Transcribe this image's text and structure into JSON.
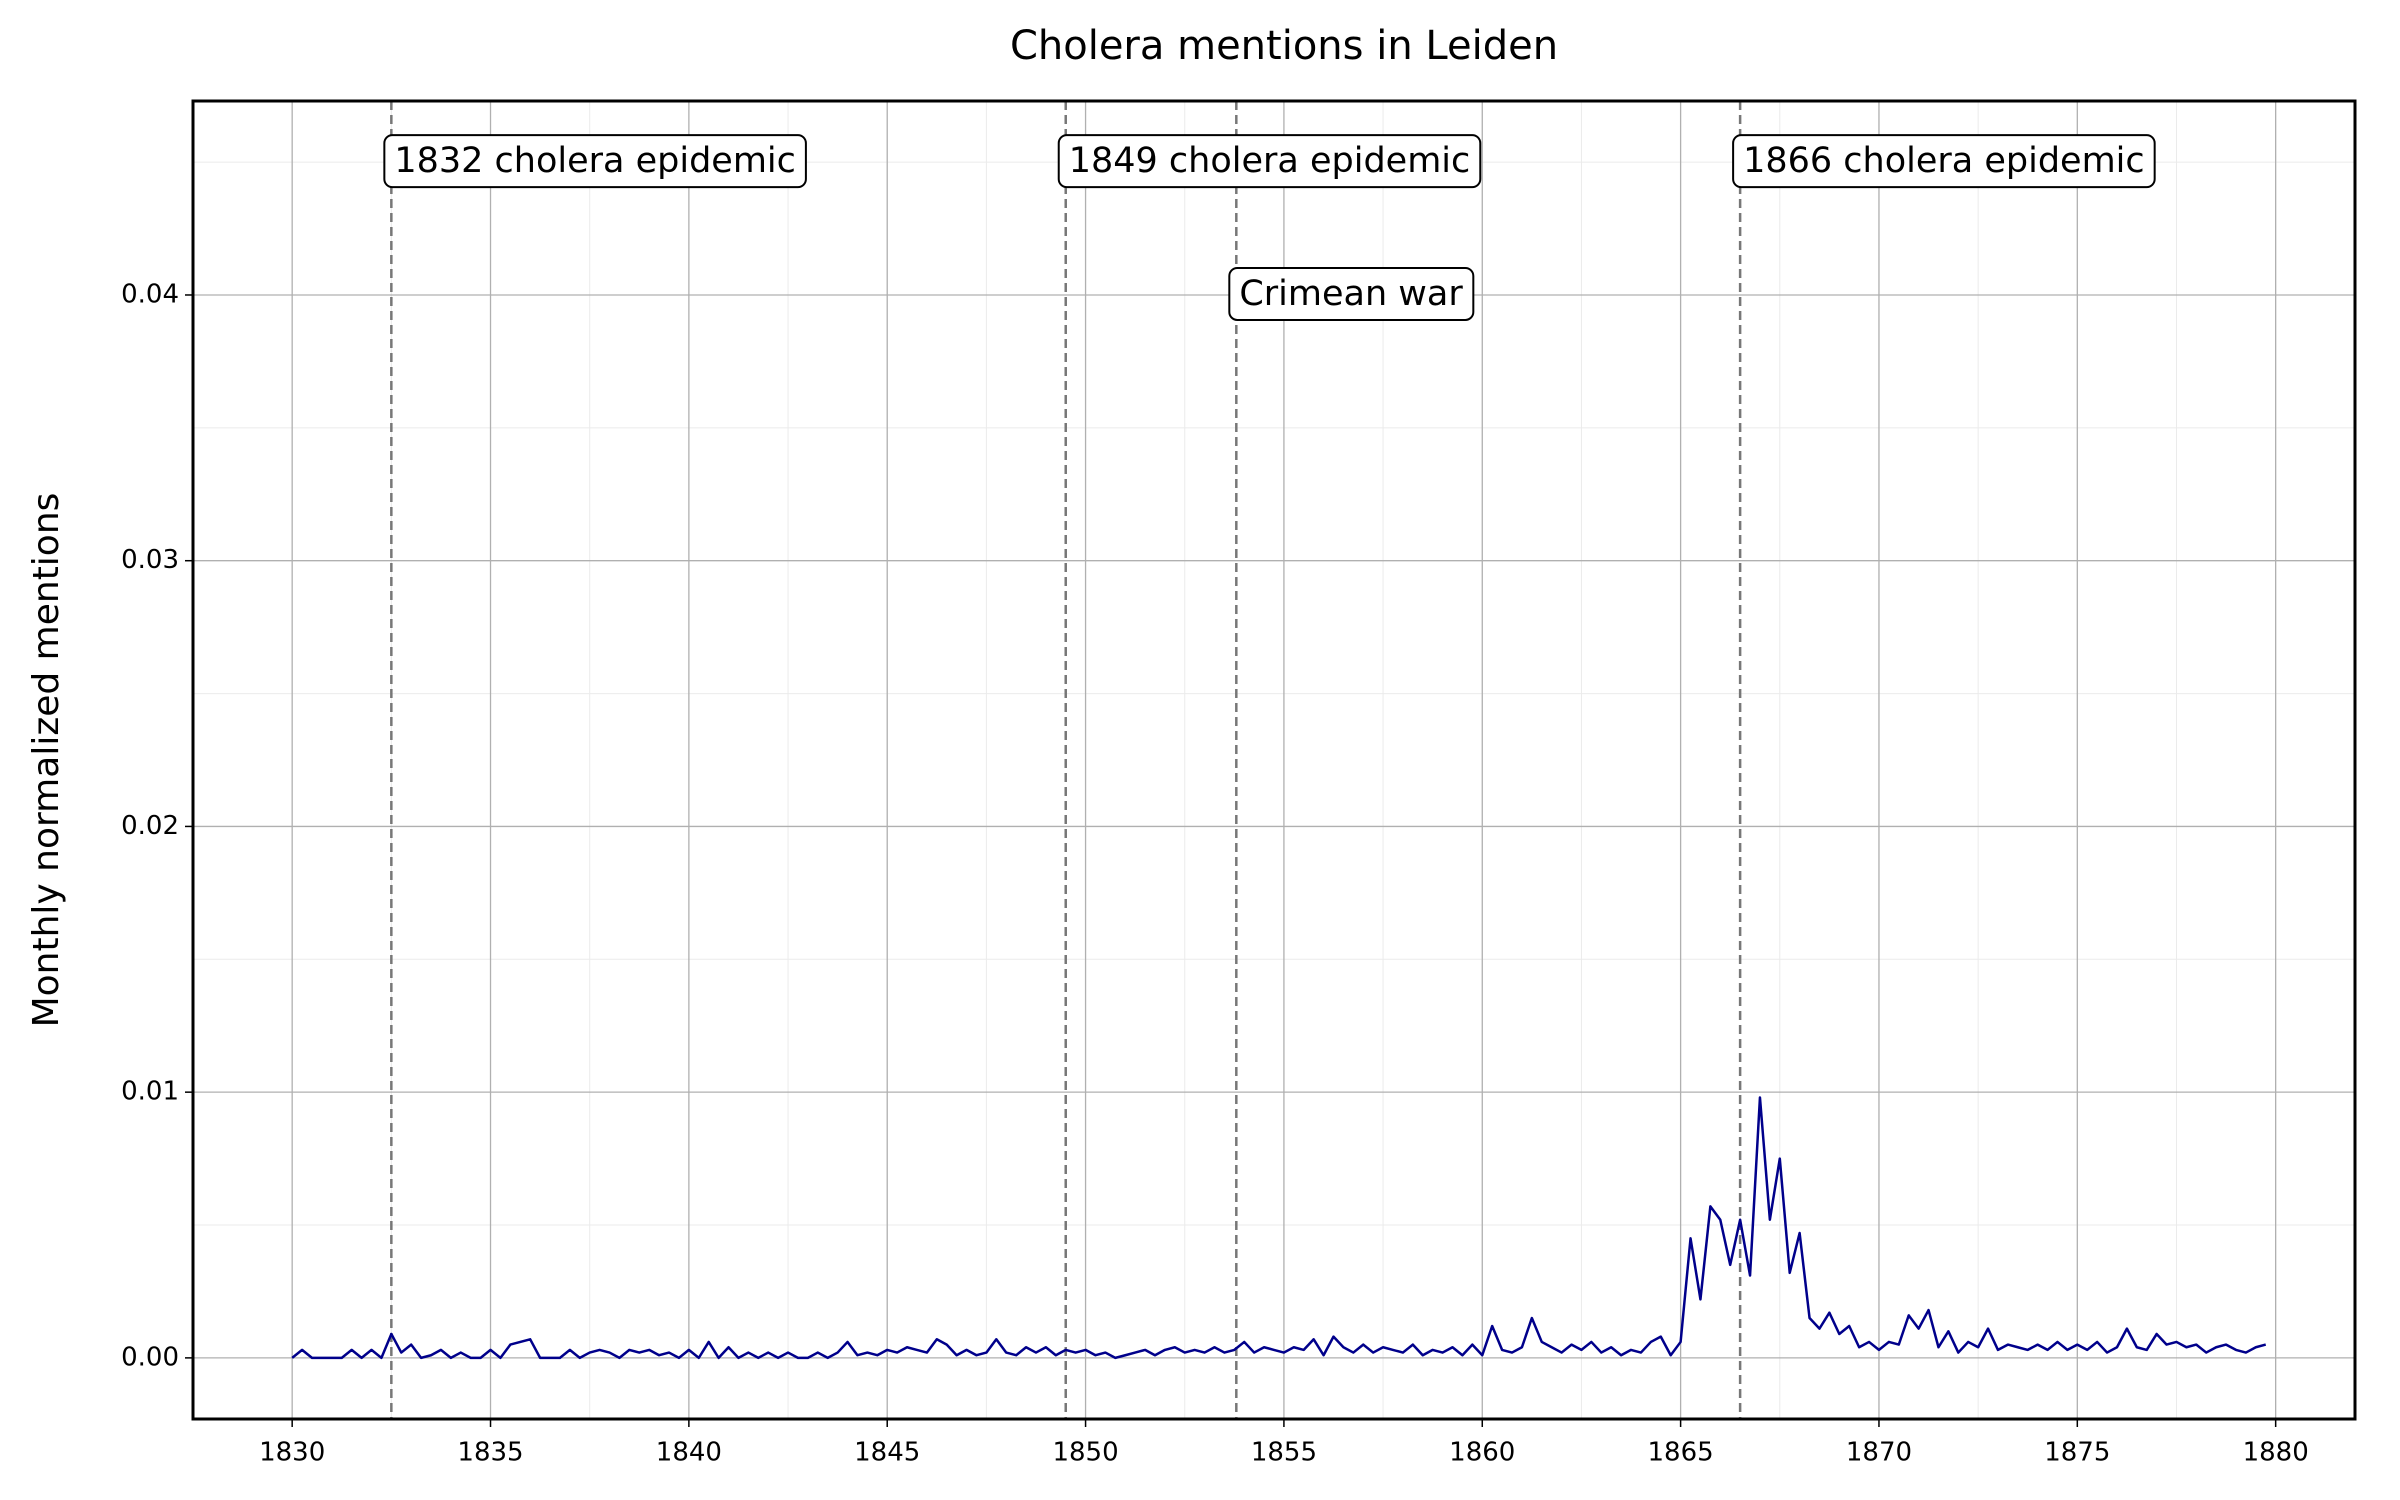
{
  "chart_data": {
    "type": "line",
    "title": "Cholera mentions in Leiden",
    "y_label": "Monthly normalized mentions",
    "xlim": [
      1827.5,
      1882
    ],
    "ylim": [
      -0.0023,
      0.0473
    ],
    "xticks": [
      1830,
      1835,
      1840,
      1845,
      1850,
      1855,
      1860,
      1865,
      1870,
      1875,
      1880
    ],
    "yticks": [
      {
        "value": 0,
        "label": "0.00"
      },
      {
        "value": 0.01,
        "label": "0.01"
      },
      {
        "value": 0.02,
        "label": "0.02"
      },
      {
        "value": 0.03,
        "label": "0.03"
      },
      {
        "value": 0.04,
        "label": "0.04"
      }
    ],
    "x_minor_ticks": [
      1832.5,
      1837.5,
      1842.5,
      1847.5,
      1852.5,
      1857.5,
      1862.5,
      1867.5,
      1872.5,
      1877.5
    ],
    "y_minor_ticks": [
      0.005,
      0.015,
      0.025,
      0.035,
      0.045
    ],
    "grid": true,
    "vlines": [
      1832.5,
      1849.5,
      1853.8,
      1866.5
    ],
    "vline_color": "#777777",
    "annotations": [
      {
        "x": 1832.5,
        "y": 0.045,
        "text": "1832 cholera epidemic"
      },
      {
        "x": 1849.5,
        "y": 0.045,
        "text": "1849 cholera epidemic"
      },
      {
        "x": 1853.8,
        "y": 0.04,
        "text": "Crimean war"
      },
      {
        "x": 1866.5,
        "y": 0.045,
        "text": "1866 cholera epidemic"
      }
    ],
    "x": [
      1830,
      1830.25,
      1830.5,
      1830.75,
      1831,
      1831.25,
      1831.5,
      1831.75,
      1832,
      1832.25,
      1832.5,
      1832.75,
      1833,
      1833.25,
      1833.5,
      1833.75,
      1834,
      1834.25,
      1834.5,
      1834.75,
      1835,
      1835.25,
      1835.5,
      1835.75,
      1836,
      1836.25,
      1836.5,
      1836.75,
      1837,
      1837.25,
      1837.5,
      1837.75,
      1838,
      1838.25,
      1838.5,
      1838.75,
      1839,
      1839.25,
      1839.5,
      1839.75,
      1840,
      1840.25,
      1840.5,
      1840.75,
      1841,
      1841.25,
      1841.5,
      1841.75,
      1842,
      1842.25,
      1842.5,
      1842.75,
      1843,
      1843.25,
      1843.5,
      1843.75,
      1844,
      1844.25,
      1844.5,
      1844.75,
      1845,
      1845.25,
      1845.5,
      1845.75,
      1846,
      1846.25,
      1846.5,
      1846.75,
      1847,
      1847.25,
      1847.5,
      1847.75,
      1848,
      1848.25,
      1848.5,
      1848.75,
      1849,
      1849.25,
      1849.5,
      1849.75,
      1850,
      1850.25,
      1850.5,
      1850.75,
      1851,
      1851.25,
      1851.5,
      1851.75,
      1852,
      1852.25,
      1852.5,
      1852.75,
      1853,
      1853.25,
      1853.5,
      1853.75,
      1854,
      1854.25,
      1854.5,
      1854.75,
      1855,
      1855.25,
      1855.5,
      1855.75,
      1856,
      1856.25,
      1856.5,
      1856.75,
      1857,
      1857.25,
      1857.5,
      1857.75,
      1858,
      1858.25,
      1858.5,
      1858.75,
      1859,
      1859.25,
      1859.5,
      1859.75,
      1860,
      1860.25,
      1860.5,
      1860.75,
      1861,
      1861.25,
      1861.5,
      1861.75,
      1862,
      1862.25,
      1862.5,
      1862.75,
      1863,
      1863.25,
      1863.5,
      1863.75,
      1864,
      1864.25,
      1864.5,
      1864.75,
      1865,
      1865.25,
      1865.5,
      1865.75,
      1866,
      1866.25,
      1866.5,
      1866.75,
      1867,
      1867.25,
      1867.5,
      1867.75,
      1868,
      1868.25,
      1868.5,
      1868.75,
      1869,
      1869.25,
      1869.5,
      1869.75,
      1870,
      1870.25,
      1870.5,
      1870.75,
      1871,
      1871.25,
      1871.5,
      1871.75,
      1872,
      1872.25,
      1872.5,
      1872.75,
      1873,
      1873.25,
      1873.5,
      1873.75,
      1874,
      1874.25,
      1874.5,
      1874.75,
      1875,
      1875.25,
      1875.5,
      1875.75,
      1876,
      1876.25,
      1876.5,
      1876.75,
      1877,
      1877.25,
      1877.5,
      1877.75,
      1878,
      1878.25,
      1878.5,
      1878.75,
      1879,
      1879.25,
      1879.5,
      1879.75
    ],
    "series": [
      {
        "color": "#00008b",
        "values": [
          0,
          0.0003,
          0,
          0,
          0,
          0,
          0.0003,
          0,
          0.0003,
          0,
          0.0009,
          0.0002,
          0.0005,
          0,
          0.0001,
          0.0003,
          0,
          0.0002,
          0,
          0,
          0.0003,
          0,
          0.0005,
          0.0006,
          0.0007,
          0,
          0,
          0,
          0.0003,
          0,
          0.0002,
          0.0003,
          0.0002,
          0,
          0.0003,
          0.0002,
          0.0003,
          0.0001,
          0.0002,
          0,
          0.0003,
          0,
          0.0006,
          0,
          0.0004,
          0,
          0.0002,
          0,
          0.0002,
          0,
          0.0002,
          0,
          0,
          0.0002,
          0,
          0.0002,
          0.0006,
          0.0001,
          0.0002,
          0.0001,
          0.0003,
          0.0002,
          0.0004,
          0.0003,
          0.0002,
          0.0007,
          0.0005,
          0.0001,
          0.0003,
          0.0001,
          0.0002,
          0.0007,
          0.0002,
          0.0001,
          0.0004,
          0.0002,
          0.0004,
          0.0001,
          0.0003,
          0.0002,
          0.0003,
          0.0001,
          0.0002,
          0,
          0.0001,
          0.0002,
          0.0003,
          0.0001,
          0.0003,
          0.0004,
          0.0002,
          0.0003,
          0.0002,
          0.0004,
          0.0002,
          0.0003,
          0.0006,
          0.0002,
          0.0004,
          0.0003,
          0.0002,
          0.0004,
          0.0003,
          0.0007,
          0.0001,
          0.0008,
          0.0004,
          0.0002,
          0.0005,
          0.0002,
          0.0004,
          0.0003,
          0.0002,
          0.0005,
          0.0001,
          0.0003,
          0.0002,
          0.0004,
          0.0001,
          0.0005,
          0.0001,
          0.0012,
          0.0003,
          0.0002,
          0.0004,
          0.0015,
          0.0006,
          0.0004,
          0.0002,
          0.0005,
          0.0003,
          0.0006,
          0.0002,
          0.0004,
          0.0001,
          0.0003,
          0.0002,
          0.0006,
          0.0008,
          0.0001,
          0.0006,
          0.0045,
          0.0022,
          0.0057,
          0.0052,
          0.0035,
          0.0052,
          0.0031,
          0.0098,
          0.0052,
          0.0075,
          0.0032,
          0.0047,
          0.0015,
          0.0011,
          0.0017,
          0.0009,
          0.0012,
          0.0004,
          0.0006,
          0.0003,
          0.0006,
          0.0005,
          0.0016,
          0.0011,
          0.0018,
          0.0004,
          0.001,
          0.0002,
          0.0006,
          0.0004,
          0.0011,
          0.0003,
          0.0005,
          0.0004,
          0.0003,
          0.0005,
          0.0003,
          0.0006,
          0.0003,
          0.0005,
          0.0003,
          0.0006,
          0.0002,
          0.0004,
          0.0011,
          0.0004,
          0.0003,
          0.0009,
          0.0005,
          0.0006,
          0.0004,
          0.0005,
          0.0002,
          0.0004,
          0.0005,
          0.0003,
          0.0002,
          0.0004,
          0.0005
        ]
      }
    ]
  }
}
